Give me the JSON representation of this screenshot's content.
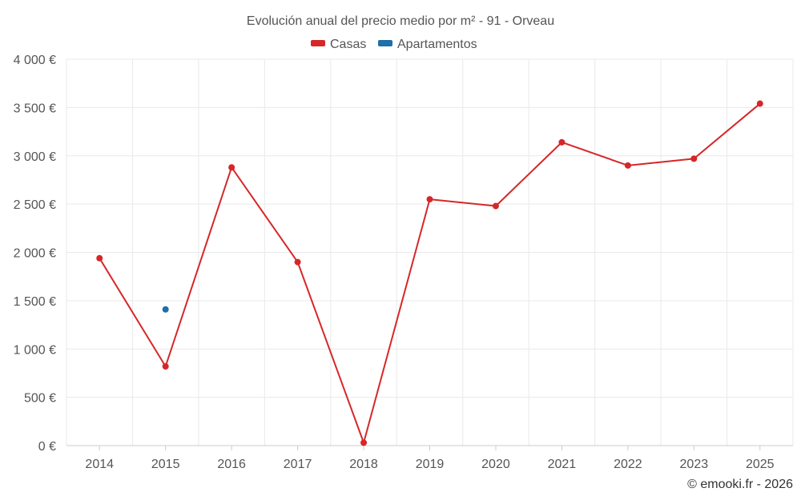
{
  "chart_data": {
    "type": "line",
    "title": "Evolución anual del precio medio por m² - 91 - Orveau",
    "x": [
      "2014",
      "2015",
      "2016",
      "2017",
      "2018",
      "2019",
      "2020",
      "2021",
      "2022",
      "2023",
      "2025"
    ],
    "ylim": [
      0,
      4000
    ],
    "yticks": [
      0,
      500,
      1000,
      1500,
      2000,
      2500,
      3000,
      3500,
      4000
    ],
    "ytick_labels": [
      "0 €",
      "500 €",
      "1 000 €",
      "1 500 €",
      "2 000 €",
      "2 500 €",
      "3 000 €",
      "3 500 €",
      "4 000 €"
    ],
    "grid": true,
    "legend": "top-center",
    "series": [
      {
        "name": "Casas",
        "color": "#d62728",
        "values": [
          1940,
          820,
          2880,
          1900,
          30,
          2550,
          2480,
          3140,
          2900,
          2970,
          3540
        ]
      },
      {
        "name": "Apartamentos",
        "color": "#1f6fa8",
        "values": [
          null,
          1410,
          null,
          null,
          null,
          null,
          null,
          null,
          null,
          null,
          null
        ]
      }
    ]
  },
  "credit": "© emooki.fr - 2026"
}
